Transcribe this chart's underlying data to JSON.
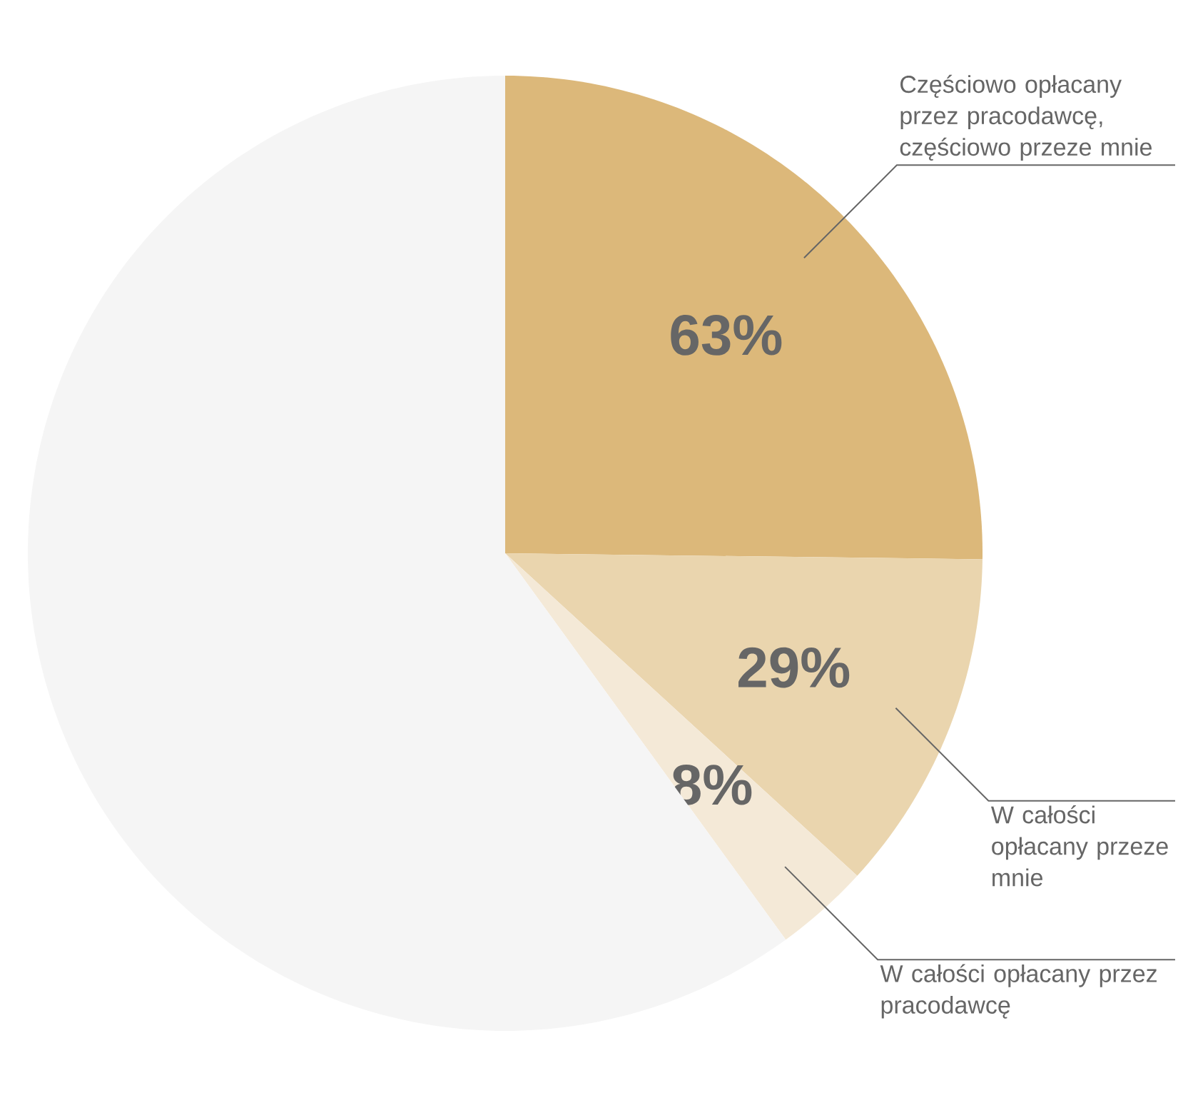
{
  "chart_data": {
    "type": "pie",
    "categories": [
      "Częściowo opłacany przez pracodawcę, częściowo przeze mnie",
      "W całości opłacany przeze mnie",
      "W całości opłacany przez pracodawcę",
      null
    ],
    "values": [
      63,
      29,
      8,
      150
    ],
    "colors": [
      "#dcb87a",
      "#ead5ae",
      "#f4e9d7",
      "#f5f5f5"
    ],
    "value_labels": [
      "63%",
      "29%",
      "8%",
      null
    ]
  }
}
